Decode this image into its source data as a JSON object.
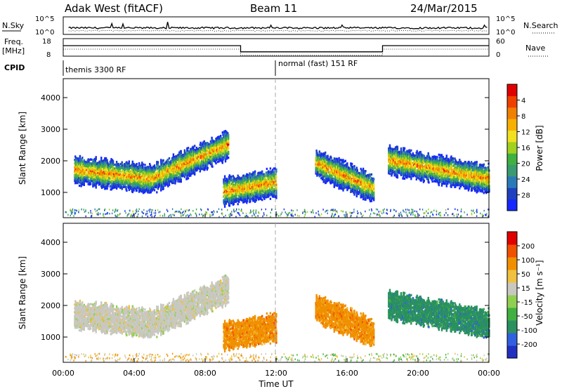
{
  "header": {
    "station": "Adak West (fitACF)",
    "beam": "Beam 11",
    "date": "24/Mar/2015"
  },
  "top_panels": {
    "nsky_label": "N.Sky",
    "nsearch_label": "N.Search",
    "nsky_ticks": [
      "10^5",
      "10^0"
    ],
    "nsearch_ticks": [
      "10^5",
      "10^0"
    ],
    "freq_label_1": "Freq.",
    "freq_label_2": "[MHz]",
    "freq_ticks": [
      "18",
      "8"
    ],
    "nave_label": "Nave",
    "nave_ticks": [
      "60",
      "0"
    ],
    "cpid_label": "CPID",
    "cpid_segments": [
      {
        "label": "themis 3300 RF",
        "start_h": 0.0,
        "end_h": 12.0
      },
      {
        "label": "normal (fast) 151 RF",
        "start_h": 12.0,
        "end_h": 24.0
      }
    ],
    "freq_series": [
      {
        "start_h": 0.0,
        "end_h": 10.0,
        "mhz": 14
      },
      {
        "start_h": 10.0,
        "end_h": 18.0,
        "mhz": 10.5
      },
      {
        "start_h": 18.0,
        "end_h": 24.0,
        "mhz": 14
      }
    ]
  },
  "chart_data": [
    {
      "type": "heatmap",
      "title": "",
      "ylabel": "Slant Range [km]",
      "xlabel": "",
      "xlim": [
        0,
        24
      ],
      "ylim": [
        200,
        4600
      ],
      "yticks": [
        "1000",
        "2000",
        "3000",
        "4000"
      ],
      "colorbar_label": "Power [dB]",
      "colorbar_ticks": [
        "4",
        "8",
        "12",
        "16",
        "20",
        "24",
        "28"
      ],
      "colorbar_colors": [
        "#1428ff",
        "#2040c0",
        "#2a7ab8",
        "#3a9a70",
        "#40b040",
        "#a0d020",
        "#f0e020",
        "#f8b000",
        "#f08000",
        "#f04000",
        "#e00000"
      ],
      "scatter_regions": [
        {
          "x_start": 0.6,
          "x_end": 9.3,
          "range_center_start": 1700,
          "range_center_mid": 1400,
          "range_center_end": 2500
        },
        {
          "x_start": 9.0,
          "x_end": 12.0,
          "range_center_start": 1000,
          "range_center_end": 1300
        },
        {
          "x_start": 14.2,
          "x_end": 17.5,
          "range_center_start": 1900,
          "range_center_end": 1100
        },
        {
          "x_start": 18.3,
          "x_end": 24.0,
          "range_center_start": 2000,
          "range_center_end": 1400
        }
      ]
    },
    {
      "type": "heatmap",
      "title": "",
      "ylabel": "Slant Range [km]",
      "xlabel": "Time UT",
      "xlim": [
        0,
        24
      ],
      "ylim": [
        200,
        4600
      ],
      "xticks": [
        "00:00",
        "04:00",
        "08:00",
        "12:00",
        "16:00",
        "20:00",
        "00:00"
      ],
      "yticks": [
        "1000",
        "2000",
        "3000",
        "4000"
      ],
      "colorbar_label": "Velocity [m s⁻¹]",
      "colorbar_ticks": [
        "200",
        "100",
        "50",
        "15",
        "-15",
        "-50",
        "-100",
        "-200"
      ],
      "colorbar_colors": [
        "#2030c0",
        "#3060e0",
        "#2a9060",
        "#40b040",
        "#90d050",
        "#c8c8c0",
        "#f0c040",
        "#f09000",
        "#f05000",
        "#e00000"
      ]
    }
  ]
}
